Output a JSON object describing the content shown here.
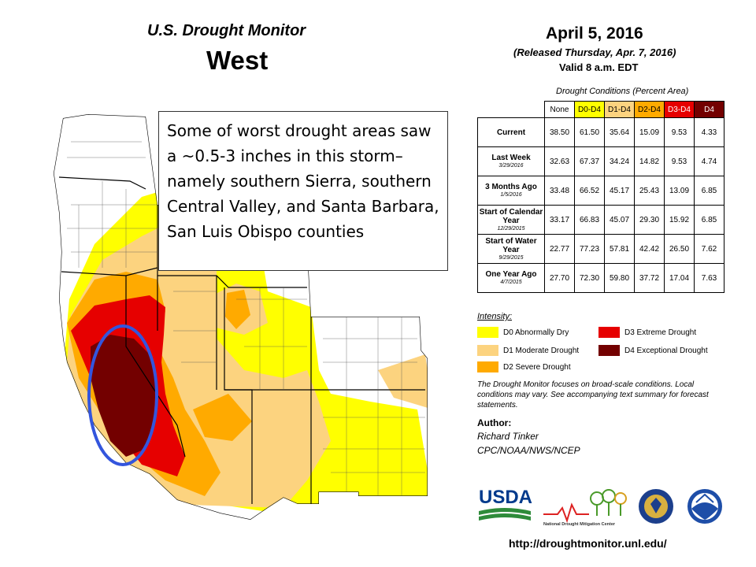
{
  "header": {
    "title": "U.S. Drought Monitor",
    "region": "West",
    "date": "April 5, 2016",
    "released": "(Released Thursday, Apr. 7, 2016)",
    "valid": "Valid  8 a.m. EDT"
  },
  "table": {
    "caption": "Drought Conditions (Percent Area)",
    "columns": [
      {
        "label": "None",
        "color": "#ffffff",
        "text_color": "#000000"
      },
      {
        "label": "D0-D4",
        "color": "#ffff00",
        "text_color": "#000000"
      },
      {
        "label": "D1-D4",
        "color": "#fcd37f",
        "text_color": "#000000"
      },
      {
        "label": "D2-D4",
        "color": "#ffaa00",
        "text_color": "#000000"
      },
      {
        "label": "D3-D4",
        "color": "#e60000",
        "text_color": "#ffffff"
      },
      {
        "label": "D4",
        "color": "#730000",
        "text_color": "#ffffff"
      }
    ],
    "rows": [
      {
        "label": "Current",
        "date": "",
        "values": [
          "38.50",
          "61.50",
          "35.64",
          "15.09",
          "9.53",
          "4.33"
        ]
      },
      {
        "label": "Last Week",
        "date": "3/29/2016",
        "values": [
          "32.63",
          "67.37",
          "34.24",
          "14.82",
          "9.53",
          "4.74"
        ]
      },
      {
        "label": "3 Months Ago",
        "date": "1/5/2016",
        "values": [
          "33.48",
          "66.52",
          "45.17",
          "25.43",
          "13.09",
          "6.85"
        ]
      },
      {
        "label": "Start of Calendar Year",
        "date": "12/29/2015",
        "values": [
          "33.17",
          "66.83",
          "45.07",
          "29.30",
          "15.92",
          "6.85"
        ]
      },
      {
        "label": "Start of Water Year",
        "date": "9/29/2015",
        "values": [
          "22.77",
          "77.23",
          "57.81",
          "42.42",
          "26.50",
          "7.62"
        ]
      },
      {
        "label": "One Year Ago",
        "date": "4/7/2015",
        "values": [
          "27.70",
          "72.30",
          "59.80",
          "37.72",
          "17.04",
          "7.63"
        ]
      }
    ]
  },
  "legend": {
    "title": "Intensity:",
    "items": [
      {
        "label": "D0 Abnormally Dry",
        "color": "#ffff00"
      },
      {
        "label": "D1 Moderate Drought",
        "color": "#fcd37f"
      },
      {
        "label": "D2 Severe Drought",
        "color": "#ffaa00"
      },
      {
        "label": "D3 Extreme Drought",
        "color": "#e60000"
      },
      {
        "label": "D4 Exceptional Drought",
        "color": "#730000"
      }
    ]
  },
  "disclaimer": "The Drought Monitor focuses on broad-scale conditions. Local conditions may vary. See accompanying text summary for forecast statements.",
  "author": {
    "label": "Author:",
    "name": "Richard Tinker",
    "org": "CPC/NOAA/NWS/NCEP"
  },
  "logos": {
    "usda": "USDA",
    "ndmc": "National Drought Mitigation Center"
  },
  "url": "http://droughtmonitor.unl.edu/",
  "annotation": "Some of worst drought areas saw a ~0.5-3 inches in this storm– namely southern Sierra, southern Central Valley, and Santa Barbara, San Luis Obispo counties",
  "highlight": {
    "color": "#3355dd"
  }
}
